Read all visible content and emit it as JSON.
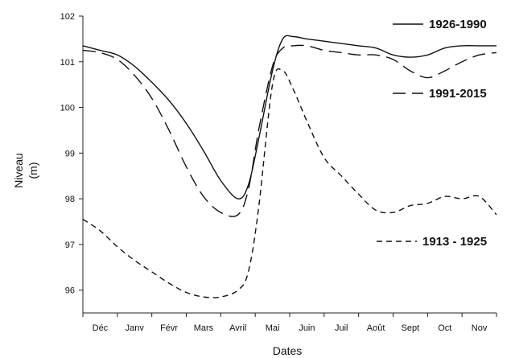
{
  "chart_data": {
    "type": "line",
    "title": "",
    "xlabel": "Dates",
    "ylabel_line1": "Niveau",
    "ylabel_line2": "(m)",
    "categories": [
      "Déc",
      "Janv",
      "Févr",
      "Mars",
      "Avril",
      "Mai",
      "Juin",
      "Juil",
      "Août",
      "Sept",
      "Oct",
      "Nov"
    ],
    "ylim": [
      95.5,
      102
    ],
    "yticks": [
      "96",
      "97",
      "98",
      "99",
      "100",
      "101",
      "102"
    ],
    "grid": false,
    "legend_placement": "right, beside each series",
    "series": [
      {
        "name": "1926-1990",
        "style": "solid",
        "x": [
          -0.5,
          0,
          0.5,
          1,
          1.5,
          2,
          2.5,
          3,
          3.5,
          4,
          4.3,
          4.6,
          5,
          5.3,
          5.6,
          6,
          6.5,
          7,
          7.5,
          8,
          8.5,
          9,
          9.5,
          10,
          10.5,
          11,
          11.5
        ],
        "y": [
          101.35,
          101.25,
          101.15,
          100.9,
          100.55,
          100.15,
          99.65,
          99.05,
          98.4,
          98.0,
          98.3,
          99.3,
          100.8,
          101.5,
          101.55,
          101.5,
          101.45,
          101.4,
          101.35,
          101.3,
          101.15,
          101.1,
          101.15,
          101.3,
          101.35,
          101.35,
          101.35
        ]
      },
      {
        "name": "1991-2015",
        "style": "long-dash",
        "x": [
          -0.5,
          0,
          0.5,
          1,
          1.5,
          2,
          2.5,
          3,
          3.5,
          4,
          4.3,
          4.6,
          5,
          5.3,
          5.6,
          6,
          6.5,
          7,
          7.5,
          8,
          8.5,
          9,
          9.5,
          10,
          10.5,
          11,
          11.5
        ],
        "y": [
          101.25,
          101.2,
          101.05,
          100.7,
          100.2,
          99.5,
          98.7,
          98.05,
          97.7,
          97.65,
          98.2,
          99.5,
          100.9,
          101.3,
          101.35,
          101.35,
          101.25,
          101.2,
          101.15,
          101.15,
          101.05,
          100.8,
          100.65,
          100.8,
          101.0,
          101.15,
          101.2
        ]
      },
      {
        "name": "1913 - 1925",
        "style": "short-dash",
        "x": [
          -0.5,
          0,
          0.5,
          1,
          1.5,
          2,
          2.5,
          3,
          3.5,
          4,
          4.3,
          4.6,
          5,
          5.3,
          5.6,
          6,
          6.5,
          7,
          7.5,
          8,
          8.5,
          9,
          9.5,
          10,
          10.5,
          11,
          11.5
        ],
        "y": [
          97.55,
          97.3,
          96.95,
          96.65,
          96.4,
          96.15,
          95.95,
          95.85,
          95.85,
          96.0,
          96.4,
          97.8,
          100.5,
          100.8,
          100.4,
          99.7,
          98.9,
          98.5,
          98.1,
          97.75,
          97.7,
          97.85,
          97.9,
          98.05,
          98.0,
          98.05,
          97.65
        ]
      }
    ]
  }
}
